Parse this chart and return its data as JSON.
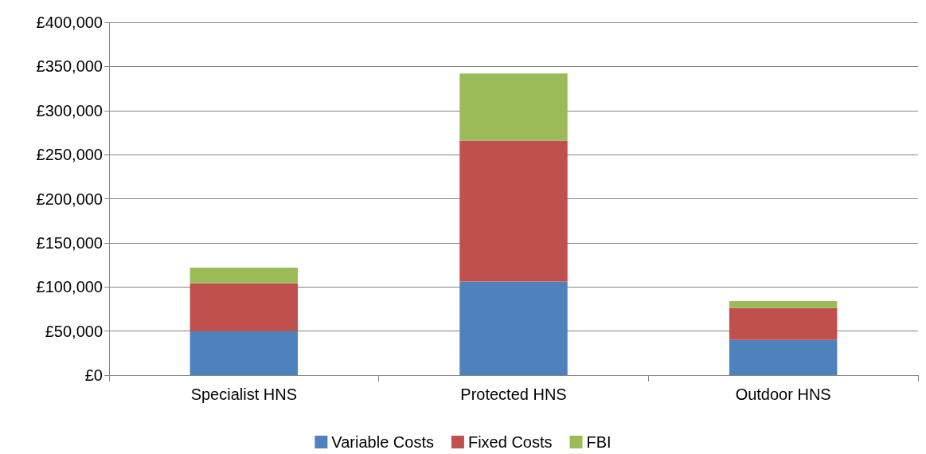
{
  "chart_data": {
    "type": "bar",
    "stacked": true,
    "categories": [
      "Specialist HNS",
      "Protected HNS",
      "Outdoor HNS"
    ],
    "series": [
      {
        "name": "Variable Costs",
        "color": "#4f81bd",
        "values": [
          50000,
          106000,
          40000
        ]
      },
      {
        "name": "Fixed Costs",
        "color": "#c0504d",
        "values": [
          54000,
          160000,
          36000
        ]
      },
      {
        "name": "FBI",
        "color": "#9bbb59",
        "values": [
          18000,
          76000,
          8000
        ]
      }
    ],
    "ylim": [
      0,
      400000
    ],
    "yticks": [
      {
        "value": 0,
        "label": "£0"
      },
      {
        "value": 50000,
        "label": "£50,000"
      },
      {
        "value": 100000,
        "label": "£100,000"
      },
      {
        "value": 150000,
        "label": "£150,000"
      },
      {
        "value": 200000,
        "label": "£200,000"
      },
      {
        "value": 250000,
        "label": "£250,000"
      },
      {
        "value": 300000,
        "label": "£300,000"
      },
      {
        "value": 350000,
        "label": "£350,000"
      },
      {
        "value": 400000,
        "label": "£400,000"
      }
    ],
    "grid": "y",
    "legend": "bottom"
  }
}
